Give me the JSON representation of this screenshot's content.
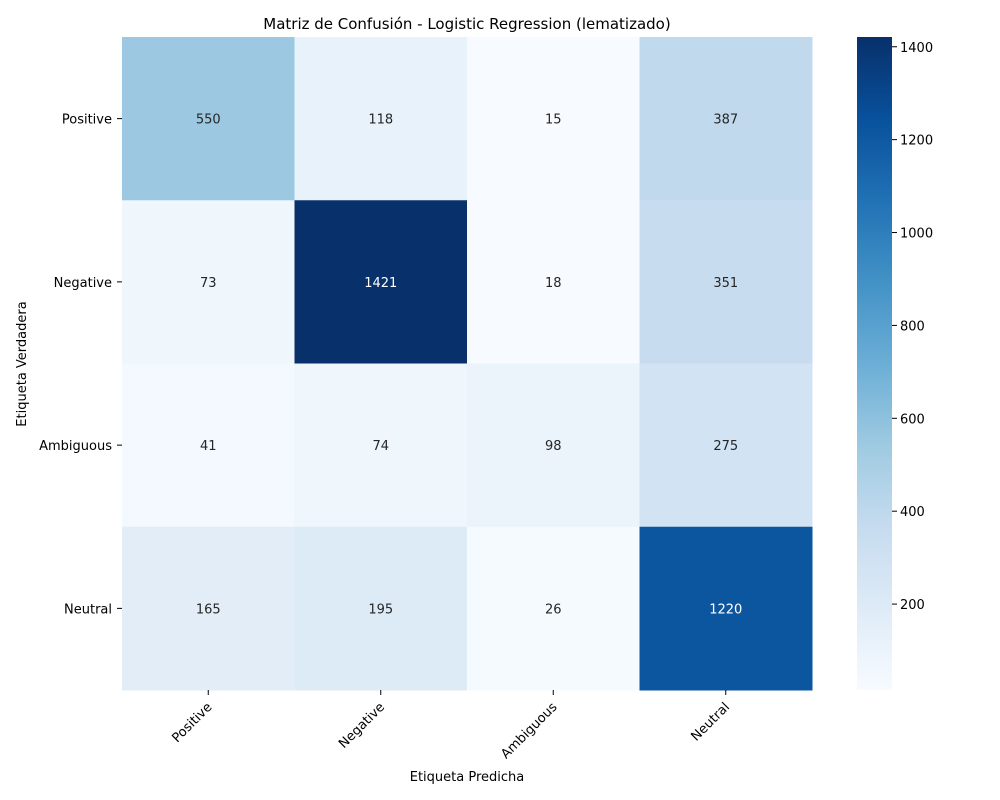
{
  "chart_data": {
    "type": "heatmap",
    "title": "Matriz de Confusión - Logistic Regression (lematizado)",
    "xlabel": "Etiqueta Predicha",
    "ylabel": "Etiqueta Verdadera",
    "x_categories": [
      "Positive",
      "Negative",
      "Ambiguous",
      "Neutral"
    ],
    "y_categories": [
      "Positive",
      "Negative",
      "Ambiguous",
      "Neutral"
    ],
    "values": [
      [
        550,
        118,
        15,
        387
      ],
      [
        73,
        1421,
        18,
        351
      ],
      [
        41,
        74,
        98,
        275
      ],
      [
        165,
        195,
        26,
        1220
      ]
    ],
    "colormap": "Blues",
    "colorbar": {
      "min": 15,
      "max": 1421,
      "ticks": [
        200,
        400,
        600,
        800,
        1000,
        1200,
        1400
      ]
    }
  }
}
